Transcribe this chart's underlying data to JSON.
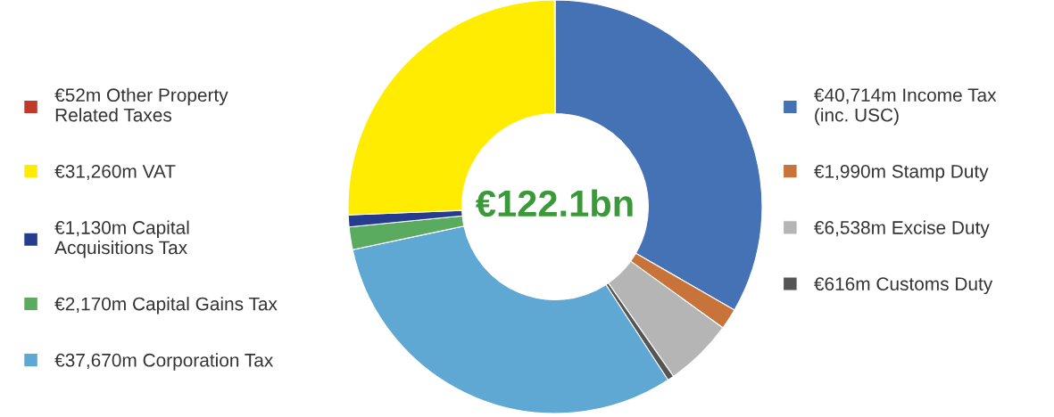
{
  "chart_data": {
    "type": "donut",
    "categories": [
      "€40,714m Income Tax\n(inc. USC)",
      "€1,990m Stamp Duty",
      "€6,538m Excise Duty",
      "€616m Customs Duty",
      "€37,670m Corporation Tax",
      "€2,170m Capital Gains Tax",
      "€1,130m Capital\nAcquisitions Tax",
      "€31,260m VAT",
      "€52m Other Property\nRelated Taxes"
    ],
    "values": [
      40714,
      1990,
      6538,
      616,
      37670,
      2170,
      1130,
      31260,
      52
    ],
    "colors": [
      "#4472b4",
      "#c8733a",
      "#b5b5b5",
      "#555555",
      "#5fa8d3",
      "#5aab5f",
      "#263d8f",
      "#ffec00",
      "#c0392b"
    ],
    "annotations": [
      "€122.1bn"
    ],
    "legend": "center"
  }
}
